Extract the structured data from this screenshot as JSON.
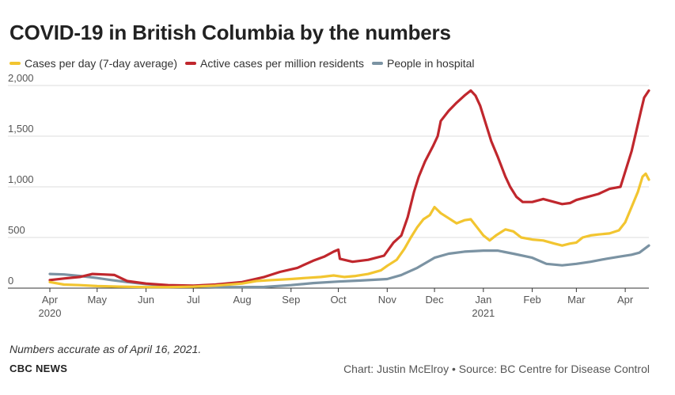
{
  "title": "COVID-19 in British Columbia by the numbers",
  "legend": [
    {
      "label": "Cases per day (7-day average)",
      "color": "#f2c530"
    },
    {
      "label": "Active cases per million residents",
      "color": "#c0272d"
    },
    {
      "label": "People in hospital",
      "color": "#7b93a3"
    }
  ],
  "note": "Numbers accurate as of April 16, 2021.",
  "brand": "CBC NEWS",
  "credit": "Chart: Justin McElroy • Source: BC Centre for Disease Control",
  "chart_data": {
    "type": "line",
    "x_start": "2020-04-01",
    "x_end": "2021-04-16",
    "ylim": [
      0,
      2000
    ],
    "y_ticks": [
      0,
      500,
      1000,
      1500,
      2000
    ],
    "y_tick_labels": [
      "0",
      "500",
      "1,000",
      "1,500",
      "2,000"
    ],
    "grid": "horizontal",
    "legend_position": "top-left",
    "x_ticks": [
      {
        "date": "2020-04-01",
        "label": "Apr",
        "sub": "2020"
      },
      {
        "date": "2020-05-01",
        "label": "May",
        "sub": ""
      },
      {
        "date": "2020-06-01",
        "label": "Jun",
        "sub": ""
      },
      {
        "date": "2020-07-01",
        "label": "Jul",
        "sub": ""
      },
      {
        "date": "2020-08-01",
        "label": "Aug",
        "sub": ""
      },
      {
        "date": "2020-09-01",
        "label": "Sep",
        "sub": ""
      },
      {
        "date": "2020-10-01",
        "label": "Oct",
        "sub": ""
      },
      {
        "date": "2020-11-01",
        "label": "Nov",
        "sub": ""
      },
      {
        "date": "2020-12-01",
        "label": "Dec",
        "sub": ""
      },
      {
        "date": "2021-01-01",
        "label": "Jan",
        "sub": "2021"
      },
      {
        "date": "2021-02-01",
        "label": "Feb",
        "sub": ""
      },
      {
        "date": "2021-03-01",
        "label": "Mar",
        "sub": ""
      },
      {
        "date": "2021-04-01",
        "label": "Apr",
        "sub": ""
      }
    ],
    "series": [
      {
        "name": "Active cases per million residents",
        "color": "#c0272d",
        "points": [
          [
            "2020-04-01",
            80
          ],
          [
            "2020-04-10",
            95
          ],
          [
            "2020-04-20",
            110
          ],
          [
            "2020-04-28",
            140
          ],
          [
            "2020-05-05",
            135
          ],
          [
            "2020-05-12",
            130
          ],
          [
            "2020-05-20",
            70
          ],
          [
            "2020-06-01",
            45
          ],
          [
            "2020-06-15",
            30
          ],
          [
            "2020-07-01",
            25
          ],
          [
            "2020-07-15",
            35
          ],
          [
            "2020-08-01",
            60
          ],
          [
            "2020-08-15",
            110
          ],
          [
            "2020-08-25",
            160
          ],
          [
            "2020-09-05",
            200
          ],
          [
            "2020-09-15",
            270
          ],
          [
            "2020-09-22",
            310
          ],
          [
            "2020-09-28",
            360
          ],
          [
            "2020-10-01",
            380
          ],
          [
            "2020-10-02",
            290
          ],
          [
            "2020-10-10",
            260
          ],
          [
            "2020-10-20",
            280
          ],
          [
            "2020-10-30",
            320
          ],
          [
            "2020-11-05",
            450
          ],
          [
            "2020-11-10",
            520
          ],
          [
            "2020-11-14",
            700
          ],
          [
            "2020-11-18",
            950
          ],
          [
            "2020-11-21",
            1100
          ],
          [
            "2020-11-25",
            1250
          ],
          [
            "2020-11-30",
            1400
          ],
          [
            "2020-12-03",
            1500
          ],
          [
            "2020-12-05",
            1650
          ],
          [
            "2020-12-10",
            1750
          ],
          [
            "2020-12-15",
            1830
          ],
          [
            "2020-12-20",
            1900
          ],
          [
            "2020-12-24",
            1950
          ],
          [
            "2020-12-27",
            1900
          ],
          [
            "2020-12-30",
            1800
          ],
          [
            "2021-01-03",
            1600
          ],
          [
            "2021-01-06",
            1450
          ],
          [
            "2021-01-10",
            1300
          ],
          [
            "2021-01-15",
            1100
          ],
          [
            "2021-01-18",
            1000
          ],
          [
            "2021-01-22",
            900
          ],
          [
            "2021-01-26",
            850
          ],
          [
            "2021-02-01",
            850
          ],
          [
            "2021-02-08",
            880
          ],
          [
            "2021-02-15",
            850
          ],
          [
            "2021-02-20",
            830
          ],
          [
            "2021-02-25",
            840
          ],
          [
            "2021-03-01",
            870
          ],
          [
            "2021-03-08",
            900
          ],
          [
            "2021-03-15",
            930
          ],
          [
            "2021-03-22",
            980
          ],
          [
            "2021-03-29",
            1000
          ],
          [
            "2021-04-01",
            1150
          ],
          [
            "2021-04-05",
            1350
          ],
          [
            "2021-04-08",
            1550
          ],
          [
            "2021-04-11",
            1750
          ],
          [
            "2021-04-13",
            1880
          ],
          [
            "2021-04-16",
            1950
          ]
        ]
      },
      {
        "name": "Cases per day (7-day average)",
        "color": "#f2c530",
        "points": [
          [
            "2020-04-01",
            60
          ],
          [
            "2020-04-10",
            35
          ],
          [
            "2020-04-20",
            30
          ],
          [
            "2020-05-01",
            20
          ],
          [
            "2020-05-15",
            15
          ],
          [
            "2020-06-01",
            10
          ],
          [
            "2020-06-15",
            10
          ],
          [
            "2020-07-01",
            15
          ],
          [
            "2020-07-15",
            25
          ],
          [
            "2020-08-01",
            45
          ],
          [
            "2020-08-10",
            70
          ],
          [
            "2020-08-20",
            80
          ],
          [
            "2020-09-01",
            90
          ],
          [
            "2020-09-10",
            100
          ],
          [
            "2020-09-20",
            110
          ],
          [
            "2020-09-28",
            125
          ],
          [
            "2020-10-05",
            110
          ],
          [
            "2020-10-12",
            120
          ],
          [
            "2020-10-20",
            140
          ],
          [
            "2020-10-28",
            175
          ],
          [
            "2020-11-01",
            220
          ],
          [
            "2020-11-07",
            280
          ],
          [
            "2020-11-12",
            390
          ],
          [
            "2020-11-16",
            500
          ],
          [
            "2020-11-20",
            600
          ],
          [
            "2020-11-24",
            680
          ],
          [
            "2020-11-28",
            720
          ],
          [
            "2020-12-01",
            800
          ],
          [
            "2020-12-05",
            740
          ],
          [
            "2020-12-10",
            690
          ],
          [
            "2020-12-15",
            640
          ],
          [
            "2020-12-20",
            670
          ],
          [
            "2020-12-24",
            680
          ],
          [
            "2020-12-28",
            600
          ],
          [
            "2021-01-01",
            520
          ],
          [
            "2021-01-05",
            470
          ],
          [
            "2021-01-09",
            520
          ],
          [
            "2021-01-15",
            580
          ],
          [
            "2021-01-20",
            560
          ],
          [
            "2021-01-25",
            500
          ],
          [
            "2021-02-01",
            480
          ],
          [
            "2021-02-08",
            470
          ],
          [
            "2021-02-15",
            440
          ],
          [
            "2021-02-20",
            420
          ],
          [
            "2021-02-25",
            440
          ],
          [
            "2021-03-01",
            450
          ],
          [
            "2021-03-05",
            500
          ],
          [
            "2021-03-10",
            520
          ],
          [
            "2021-03-15",
            530
          ],
          [
            "2021-03-22",
            540
          ],
          [
            "2021-03-28",
            570
          ],
          [
            "2021-04-01",
            650
          ],
          [
            "2021-04-05",
            800
          ],
          [
            "2021-04-09",
            950
          ],
          [
            "2021-04-12",
            1100
          ],
          [
            "2021-04-14",
            1130
          ],
          [
            "2021-04-16",
            1070
          ]
        ]
      },
      {
        "name": "People in hospital",
        "color": "#7b93a3",
        "points": [
          [
            "2020-04-01",
            140
          ],
          [
            "2020-04-10",
            135
          ],
          [
            "2020-04-20",
            120
          ],
          [
            "2020-05-01",
            100
          ],
          [
            "2020-05-10",
            80
          ],
          [
            "2020-05-20",
            60
          ],
          [
            "2020-06-01",
            40
          ],
          [
            "2020-06-15",
            25
          ],
          [
            "2020-07-01",
            18
          ],
          [
            "2020-07-15",
            10
          ],
          [
            "2020-08-01",
            10
          ],
          [
            "2020-08-15",
            12
          ],
          [
            "2020-09-01",
            30
          ],
          [
            "2020-09-15",
            50
          ],
          [
            "2020-10-01",
            65
          ],
          [
            "2020-10-15",
            75
          ],
          [
            "2020-11-01",
            90
          ],
          [
            "2020-11-10",
            130
          ],
          [
            "2020-11-20",
            200
          ],
          [
            "2020-12-01",
            300
          ],
          [
            "2020-12-10",
            340
          ],
          [
            "2020-12-20",
            360
          ],
          [
            "2021-01-01",
            370
          ],
          [
            "2021-01-10",
            370
          ],
          [
            "2021-01-20",
            340
          ],
          [
            "2021-02-01",
            300
          ],
          [
            "2021-02-10",
            240
          ],
          [
            "2021-02-20",
            225
          ],
          [
            "2021-03-01",
            240
          ],
          [
            "2021-03-10",
            260
          ],
          [
            "2021-03-20",
            290
          ],
          [
            "2021-03-28",
            310
          ],
          [
            "2021-04-05",
            330
          ],
          [
            "2021-04-10",
            350
          ],
          [
            "2021-04-16",
            420
          ]
        ]
      }
    ]
  }
}
